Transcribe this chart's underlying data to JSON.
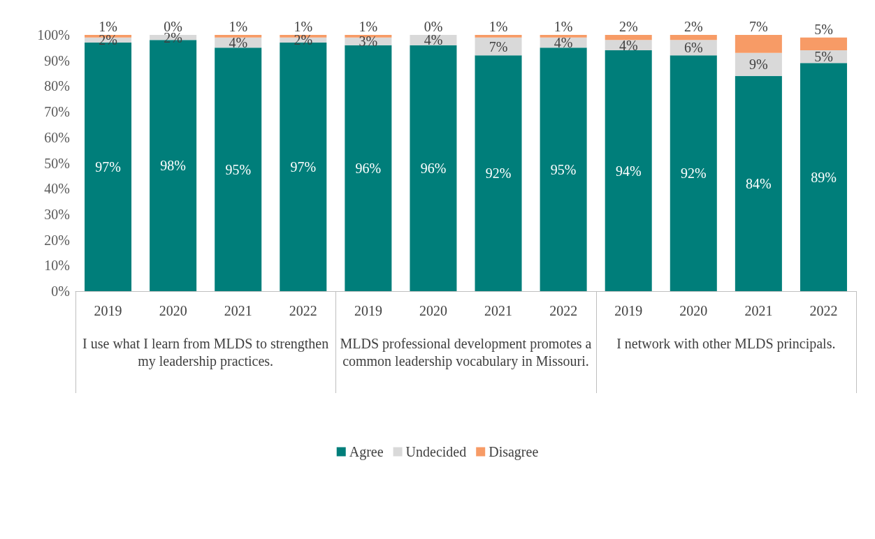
{
  "chart_data": {
    "type": "bar",
    "stacked": true,
    "categories": [
      "2019",
      "2020",
      "2021",
      "2022",
      "2019",
      "2020",
      "2021",
      "2022",
      "2019",
      "2020",
      "2021",
      "2022"
    ],
    "annotations": [
      "I use what I learn from MLDS to strengthen my leadership practices.",
      "MLDS professional development promotes a common leadership vocabulary in Missouri.",
      "I network with other MLDS principals."
    ],
    "series": [
      {
        "name": "Agree",
        "color": "#007e7a",
        "values": [
          97,
          98,
          95,
          97,
          96,
          96,
          92,
          95,
          94,
          92,
          84,
          89
        ],
        "value_labels": [
          "97%",
          "98%",
          "95%",
          "97%",
          "96%",
          "96%",
          "92%",
          "95%",
          "94%",
          "92%",
          "84%",
          "89%"
        ]
      },
      {
        "name": "Undecided",
        "color": "#d9d9d9",
        "values": [
          2,
          2,
          4,
          2,
          3,
          4,
          7,
          4,
          4,
          6,
          9,
          5
        ],
        "value_labels": [
          "2%",
          "2%",
          "4%",
          "2%",
          "3%",
          "4%",
          "7%",
          "4%",
          "4%",
          "6%",
          "9%",
          "5%"
        ]
      },
      {
        "name": "Disagree",
        "color": "#f79b66",
        "values": [
          1,
          0,
          1,
          1,
          1,
          0,
          1,
          1,
          2,
          2,
          7,
          5
        ],
        "value_labels": [
          "1%",
          "0%",
          "1%",
          "1%",
          "1%",
          "0%",
          "1%",
          "1%",
          "2%",
          "2%",
          "7%",
          "5%"
        ]
      }
    ],
    "ylim": [
      0,
      100
    ],
    "yticks": [
      {
        "value": 0,
        "label": "0%"
      },
      {
        "value": 10,
        "label": "10%"
      },
      {
        "value": 20,
        "label": "20%"
      },
      {
        "value": 30,
        "label": "30%"
      },
      {
        "value": 40,
        "label": "40%"
      },
      {
        "value": 50,
        "label": "50%"
      },
      {
        "value": 60,
        "label": "60%"
      },
      {
        "value": 70,
        "label": "70%"
      },
      {
        "value": 80,
        "label": "80%"
      },
      {
        "value": 90,
        "label": "90%"
      },
      {
        "value": 100,
        "label": "100%"
      }
    ],
    "grid": false,
    "legend": "bottom"
  }
}
